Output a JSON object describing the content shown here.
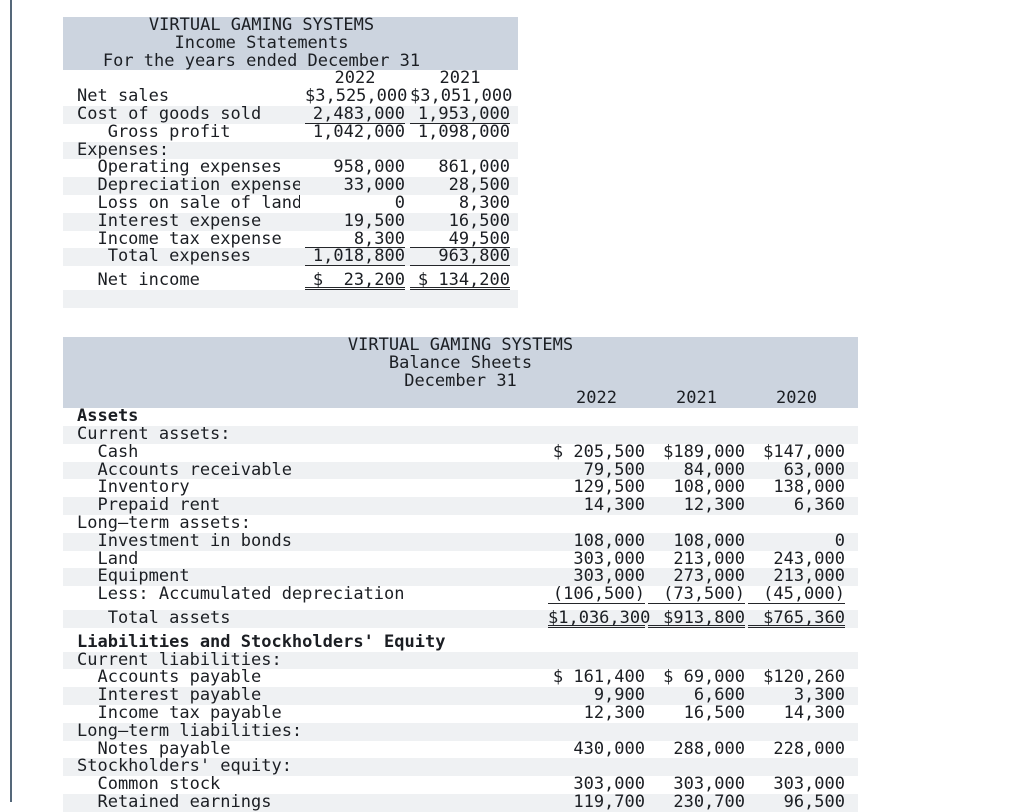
{
  "income_statement": {
    "title": "VIRTUAL GAMING SYSTEMS",
    "subtitle": "Income Statements",
    "period": "For the years ended December 31",
    "years": [
      "2022",
      "2021"
    ],
    "rows": [
      {
        "label": "Net sales",
        "vals": [
          "$3,525,000",
          "$3,051,000"
        ]
      },
      {
        "label": "Cost of goods sold",
        "vals": [
          "2,483,000",
          "1,953,000"
        ],
        "ul": "s"
      },
      {
        "label": "   Gross profit",
        "vals": [
          "1,042,000",
          "1,098,000"
        ]
      },
      {
        "label": "Expenses:"
      },
      {
        "label": "  Operating expenses",
        "vals": [
          "958,000",
          "861,000"
        ]
      },
      {
        "label": "  Depreciation expense",
        "vals": [
          "33,000",
          "28,500"
        ]
      },
      {
        "label": "  Loss on sale of land",
        "vals": [
          "0",
          "8,300"
        ]
      },
      {
        "label": "  Interest expense",
        "vals": [
          "19,500",
          "16,500"
        ]
      },
      {
        "label": "  Income tax expense",
        "vals": [
          "8,300",
          "49,500"
        ],
        "ul": "s"
      },
      {
        "label": "   Total expenses",
        "vals": [
          "1,018,800",
          "963,800"
        ],
        "ul": "s"
      },
      {
        "label": "  Net income",
        "vals": [
          "$  23,200",
          "$ 134,200"
        ],
        "ul": "d",
        "gap": true
      },
      {
        "label": ""
      }
    ]
  },
  "balance_sheet": {
    "title": "VIRTUAL GAMING SYSTEMS",
    "subtitle": "Balance Sheets",
    "period": "December 31",
    "years": [
      "2022",
      "2021",
      "2020"
    ],
    "rows": [
      {
        "label": "Assets",
        "bold": true
      },
      {
        "label": "Current assets:"
      },
      {
        "label": "  Cash",
        "vals": [
          "$ 205,500",
          "$189,000",
          "$147,000"
        ]
      },
      {
        "label": "  Accounts receivable",
        "vals": [
          "79,500",
          "84,000",
          "63,000"
        ]
      },
      {
        "label": "  Inventory",
        "vals": [
          "129,500",
          "108,000",
          "138,000"
        ]
      },
      {
        "label": "  Prepaid rent",
        "vals": [
          "14,300",
          "12,300",
          "6,360"
        ]
      },
      {
        "label": "Long–term assets:"
      },
      {
        "label": "  Investment in bonds",
        "vals": [
          "108,000",
          "108,000",
          "0"
        ]
      },
      {
        "label": "  Land",
        "vals": [
          "303,000",
          "213,000",
          "243,000"
        ]
      },
      {
        "label": "  Equipment",
        "vals": [
          "303,000",
          "273,000",
          "213,000"
        ]
      },
      {
        "label": "  Less: Accumulated depreciation",
        "vals": [
          "(106,500)",
          "(73,500)",
          "(45,000)"
        ],
        "ul": "s"
      },
      {
        "label": "   Total assets",
        "vals": [
          "$1,036,300",
          "$913,800",
          "$765,360"
        ],
        "ul": "d",
        "gap": true
      },
      {
        "label": "Liabilities and Stockholders' Equity",
        "bold": true,
        "gap": true
      },
      {
        "label": "Current liabilities:"
      },
      {
        "label": "  Accounts payable",
        "vals": [
          "$ 161,400",
          "$ 69,000",
          "$120,260"
        ]
      },
      {
        "label": "  Interest payable",
        "vals": [
          "9,900",
          "6,600",
          "3,300"
        ]
      },
      {
        "label": "  Income tax payable",
        "vals": [
          "12,300",
          "16,500",
          "14,300"
        ]
      },
      {
        "label": "Long–term liabilities:"
      },
      {
        "label": "  Notes payable",
        "vals": [
          "430,000",
          "288,000",
          "228,000"
        ]
      },
      {
        "label": "Stockholders' equity:"
      },
      {
        "label": "  Common stock",
        "vals": [
          "303,000",
          "303,000",
          "303,000"
        ]
      },
      {
        "label": "  Retained earnings",
        "vals": [
          "119,700",
          "230,700",
          "96,500"
        ]
      }
    ]
  }
}
